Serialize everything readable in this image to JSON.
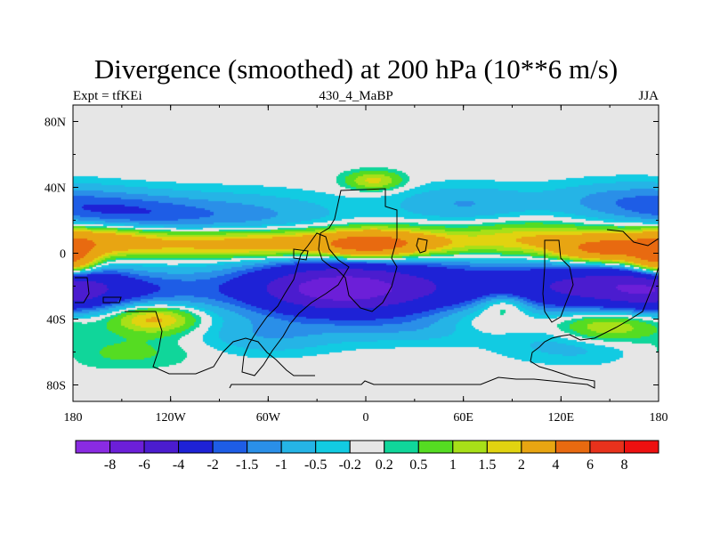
{
  "title": "Divergence (smoothed) at 200 hPa (10**6 m/s)",
  "subtitle_left": "Expt = tfKEi",
  "subtitle_center": "430_4_MaBP",
  "subtitle_right": "JJA",
  "colors": {
    "land_outline": "#000000",
    "background_field": "#e6e6e6"
  },
  "chart_data": {
    "type": "heatmap",
    "projection": "lat-lon",
    "variable": "Divergence (smoothed) at 200 hPa",
    "units": "10**6 m/s",
    "x_range": [
      -180,
      180
    ],
    "y_range": [
      -90,
      90
    ],
    "x_ticks": [
      {
        "value": -180,
        "label": "180"
      },
      {
        "value": -120,
        "label": "120W"
      },
      {
        "value": -60,
        "label": "60W"
      },
      {
        "value": 0,
        "label": "0"
      },
      {
        "value": 60,
        "label": "60E"
      },
      {
        "value": 120,
        "label": "120E"
      },
      {
        "value": 180,
        "label": "180"
      }
    ],
    "y_ticks": [
      {
        "value": 80,
        "label": "80N"
      },
      {
        "value": 40,
        "label": "40N"
      },
      {
        "value": 0,
        "label": "0"
      },
      {
        "value": -40,
        "label": "40S"
      },
      {
        "value": -80,
        "label": "80S"
      }
    ],
    "colorbar": {
      "levels": [
        "-8",
        "-6",
        "-4",
        "-2",
        "-1.5",
        "-1",
        "-0.5",
        "-0.2",
        "0.2",
        "0.5",
        "1",
        "1.5",
        "2",
        "4",
        "6",
        "8"
      ],
      "level_values": [
        -8,
        -6,
        -4,
        -2,
        -1.5,
        -1,
        -0.5,
        -0.2,
        0.2,
        0.5,
        1,
        1.5,
        2,
        4,
        6,
        8
      ],
      "colors": [
        "#8a2be2",
        "#6c1fd8",
        "#4b1ccf",
        "#1e22d6",
        "#1e5de6",
        "#2a8fe8",
        "#25b4e6",
        "#12cbe2",
        "#e6e6e6",
        "#10d69a",
        "#55dc22",
        "#a8e018",
        "#e1d310",
        "#e8a512",
        "#e86a10",
        "#e8321c",
        "#ee1010"
      ]
    },
    "field_features": [
      {
        "lon": -20,
        "lat": -22,
        "value": -4.5,
        "dlon": 35,
        "dlat": 10
      },
      {
        "lon": 5,
        "lat": -20,
        "value": -3.2,
        "dlon": 55,
        "dlat": 12
      },
      {
        "lon": 140,
        "lat": -20,
        "value": -3.5,
        "dlon": 35,
        "dlat": 10
      },
      {
        "lon": 175,
        "lat": -20,
        "value": -2.8,
        "dlon": 20,
        "dlat": 10
      },
      {
        "lon": -175,
        "lat": -22,
        "value": -1.4,
        "dlon": 30,
        "dlat": 8
      },
      {
        "lon": -130,
        "lat": -22,
        "value": -1.3,
        "dlon": 35,
        "dlat": 8
      },
      {
        "lon": 90,
        "lat": -22,
        "value": -1.0,
        "dlon": 45,
        "dlat": 10
      },
      {
        "lon": -150,
        "lat": 25,
        "value": -1.5,
        "dlon": 35,
        "dlat": 8
      },
      {
        "lon": -80,
        "lat": 22,
        "value": -1.2,
        "dlon": 45,
        "dlat": 10
      },
      {
        "lon": 60,
        "lat": 30,
        "value": -1.0,
        "dlon": 30,
        "dlat": 8
      },
      {
        "lon": 160,
        "lat": 32,
        "value": -1.2,
        "dlon": 35,
        "dlat": 8
      },
      {
        "lon": -60,
        "lat": -50,
        "value": -0.9,
        "dlon": 30,
        "dlat": 8
      },
      {
        "lon": 140,
        "lat": -55,
        "value": -1.0,
        "dlon": 35,
        "dlat": 8
      },
      {
        "lon": 30,
        "lat": -45,
        "value": -0.8,
        "dlon": 40,
        "dlat": 7
      },
      {
        "lon": -170,
        "lat": 8,
        "value": 2.6,
        "dlon": 25,
        "dlat": 6
      },
      {
        "lon": -110,
        "lat": 6,
        "value": 2.1,
        "dlon": 40,
        "dlat": 6
      },
      {
        "lon": -40,
        "lat": 6,
        "value": 2.4,
        "dlon": 35,
        "dlat": 6
      },
      {
        "lon": 0,
        "lat": 5,
        "value": 3.6,
        "dlon": 20,
        "dlat": 6
      },
      {
        "lon": 30,
        "lat": 6,
        "value": 2.3,
        "dlon": 25,
        "dlat": 6
      },
      {
        "lon": 100,
        "lat": 8,
        "value": 2.0,
        "dlon": 30,
        "dlat": 7
      },
      {
        "lon": 145,
        "lat": 2,
        "value": 4.2,
        "dlon": 20,
        "dlat": 6
      },
      {
        "lon": 175,
        "lat": -5,
        "value": 2.5,
        "dlon": 15,
        "dlat": 8
      },
      {
        "lon": -180,
        "lat": -5,
        "value": 2.6,
        "dlon": 10,
        "dlat": 8
      },
      {
        "lon": -130,
        "lat": -40,
        "value": 2.3,
        "dlon": 18,
        "dlat": 6
      },
      {
        "lon": 85,
        "lat": -30,
        "value": 1.6,
        "dlon": 12,
        "dlat": 5
      },
      {
        "lon": 5,
        "lat": 44,
        "value": 1.7,
        "dlon": 12,
        "dlat": 4
      },
      {
        "lon": 145,
        "lat": -45,
        "value": 1.3,
        "dlon": 20,
        "dlat": 7
      },
      {
        "lon": 75,
        "lat": -40,
        "value": 0.9,
        "dlon": 25,
        "dlat": 7
      },
      {
        "lon": -150,
        "lat": -60,
        "value": 0.7,
        "dlon": 30,
        "dlat": 7
      },
      {
        "lon": 160,
        "lat": -45,
        "value": 0.8,
        "dlon": 25,
        "dlat": 10
      }
    ],
    "grid": false,
    "colorbar_position": "bottom"
  }
}
